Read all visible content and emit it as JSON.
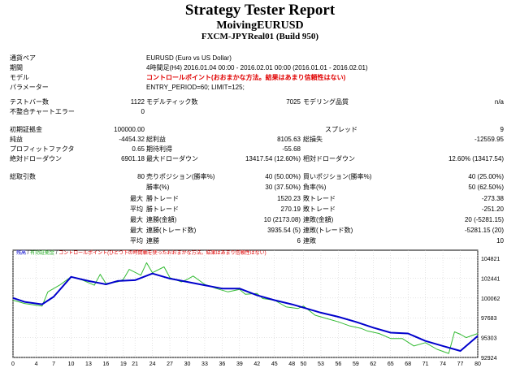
{
  "header": {
    "title": "Strategy Tester Report",
    "subtitle": "MoivingEURUSD",
    "build": "FXCM-JPYReal01 (Build 950)"
  },
  "info": {
    "symbol_label": "通貨ペア",
    "symbol_value": "EURUSD (Euro vs US Dollar)",
    "period_label": "期間",
    "period_value": "4時間足(H4) 2016.01.04 00:00 - 2016.02.01 00:00 (2016.01.01 - 2016.02.01)",
    "model_label": "モデル",
    "model_value": "コントロールポイント(おおまかな方法。結果はあまり信頼性はない)",
    "params_label": "パラメーター",
    "params_value": "ENTRY_PERIOD=60; LIMIT=125;"
  },
  "stats1": {
    "bars_label": "テストバー数",
    "bars_value": "1122",
    "ticks_label": "モデルティック数",
    "ticks_value": "7025",
    "quality_label": "モデリング品質",
    "quality_value": "n/a",
    "errors_label": "不整合チャートエラー",
    "errors_value": "0"
  },
  "stats2": {
    "deposit_label": "初期証拠金",
    "deposit_value": "100000.00",
    "spread_label": "スプレッド",
    "spread_value": "9",
    "net_label": "純益",
    "net_value": "-4454.32",
    "gross_profit_label": "総利益",
    "gross_profit_value": "8105.63",
    "gross_loss_label": "総損失",
    "gross_loss_value": "-12559.95",
    "pf_label": "プロフィットファクタ",
    "pf_value": "0.65",
    "expected_label": "期待利得",
    "expected_value": "-55.68",
    "abs_dd_label": "絶対ドローダウン",
    "abs_dd_value": "6901.18",
    "max_dd_label": "最大ドローダウン",
    "max_dd_value": "13417.54 (12.60%)",
    "rel_dd_label": "相対ドローダウン",
    "rel_dd_value": "12.60% (13417.54)"
  },
  "trades": {
    "total_label": "総取引数",
    "total_value": "80",
    "short_label": "売りポジション(勝率%)",
    "short_value": "40 (50.00%)",
    "long_label": "買いポジション(勝率%)",
    "long_value": "40 (25.00%)",
    "win_label": "勝率(%)",
    "win_value": "30 (37.50%)",
    "loss_label": "負率(%)",
    "loss_value": "50 (62.50%)",
    "max_label": "最大",
    "avg_label": "平均",
    "win_trade_label": "勝トレード",
    "loss_trade_label": "敗トレード",
    "max_win_value": "1520.23",
    "max_loss_value": "-273.38",
    "avg_win_value": "270.19",
    "avg_loss_value": "-251.20",
    "consec_win_amt_label": "連勝(金額)",
    "consec_loss_amt_label": "連敗(金額)",
    "max_consec_win_amt_value": "10 (2173.08)",
    "max_consec_loss_amt_value": "20 (-5281.15)",
    "consec_win_trades_label": "連勝(トレード数)",
    "consec_loss_trades_label": "連敗(トレード数)",
    "max_consec_win_trades_value": "3935.54 (5)",
    "max_consec_loss_trades_value": "-5281.15 (20)",
    "avg_consec_win_label": "連勝",
    "avg_consec_loss_label": "連敗",
    "avg_consec_win_value": "6",
    "avg_consec_loss_value": "10"
  },
  "chart_legend": {
    "balance": "残高",
    "equity": "有効証拠金",
    "note": "コントロールポイント(ひとつ下の時間軸を使ったおおまかな方法。結果はあまり信頼性はない)"
  },
  "colors": {
    "balance": "#0000cc",
    "equity": "#33bb33",
    "note": "#e00000"
  },
  "chart_data": {
    "type": "line",
    "x_ticks": [
      0,
      4,
      7,
      10,
      13,
      16,
      19,
      21,
      24,
      27,
      30,
      33,
      36,
      39,
      42,
      45,
      48,
      50,
      53,
      56,
      59,
      62,
      65,
      68,
      71,
      74,
      77,
      80
    ],
    "y_ticks": [
      104821,
      102441,
      100062,
      97683,
      95303,
      92924
    ],
    "xlim": [
      0,
      80
    ],
    "ylim": [
      92924,
      105800
    ],
    "series": [
      {
        "name": "残高",
        "x": [
          0,
          2,
          5,
          7,
          10,
          13,
          16,
          18,
          21,
          24,
          27,
          30,
          33,
          36,
          39,
          42,
          45,
          48,
          50,
          53,
          56,
          59,
          62,
          65,
          68,
          71,
          74,
          77,
          80
        ],
        "y": [
          100062,
          99600,
          99300,
          100200,
          102600,
          102100,
          101700,
          102100,
          102200,
          103000,
          102400,
          102000,
          101600,
          101200,
          101200,
          100400,
          99800,
          99300,
          98900,
          98300,
          97800,
          97200,
          96500,
          95900,
          95800,
          94900,
          94300,
          93700,
          95500
        ]
      },
      {
        "name": "有効証拠金",
        "x": [
          0,
          2,
          5,
          6,
          8,
          10,
          12,
          14,
          15,
          16,
          18,
          19,
          20,
          22,
          23,
          24,
          26,
          27,
          29,
          30,
          31,
          33,
          35,
          37,
          39,
          40,
          42,
          43,
          45,
          47,
          49,
          50,
          52,
          54,
          56,
          58,
          60,
          61,
          63,
          65,
          67,
          69,
          71,
          73,
          75,
          76,
          77,
          78,
          80
        ],
        "y": [
          99800,
          99400,
          99100,
          100800,
          101600,
          102600,
          102200,
          101600,
          102900,
          101800,
          102000,
          102300,
          103500,
          102800,
          104300,
          103100,
          103800,
          102500,
          102000,
          102300,
          102700,
          101700,
          101200,
          100800,
          101100,
          100500,
          100600,
          100000,
          99800,
          99000,
          98800,
          99100,
          98000,
          97600,
          97200,
          96700,
          96400,
          96100,
          95800,
          95200,
          95200,
          94300,
          94700,
          93900,
          93400,
          96000,
          95700,
          95300,
          95800
        ]
      }
    ]
  }
}
